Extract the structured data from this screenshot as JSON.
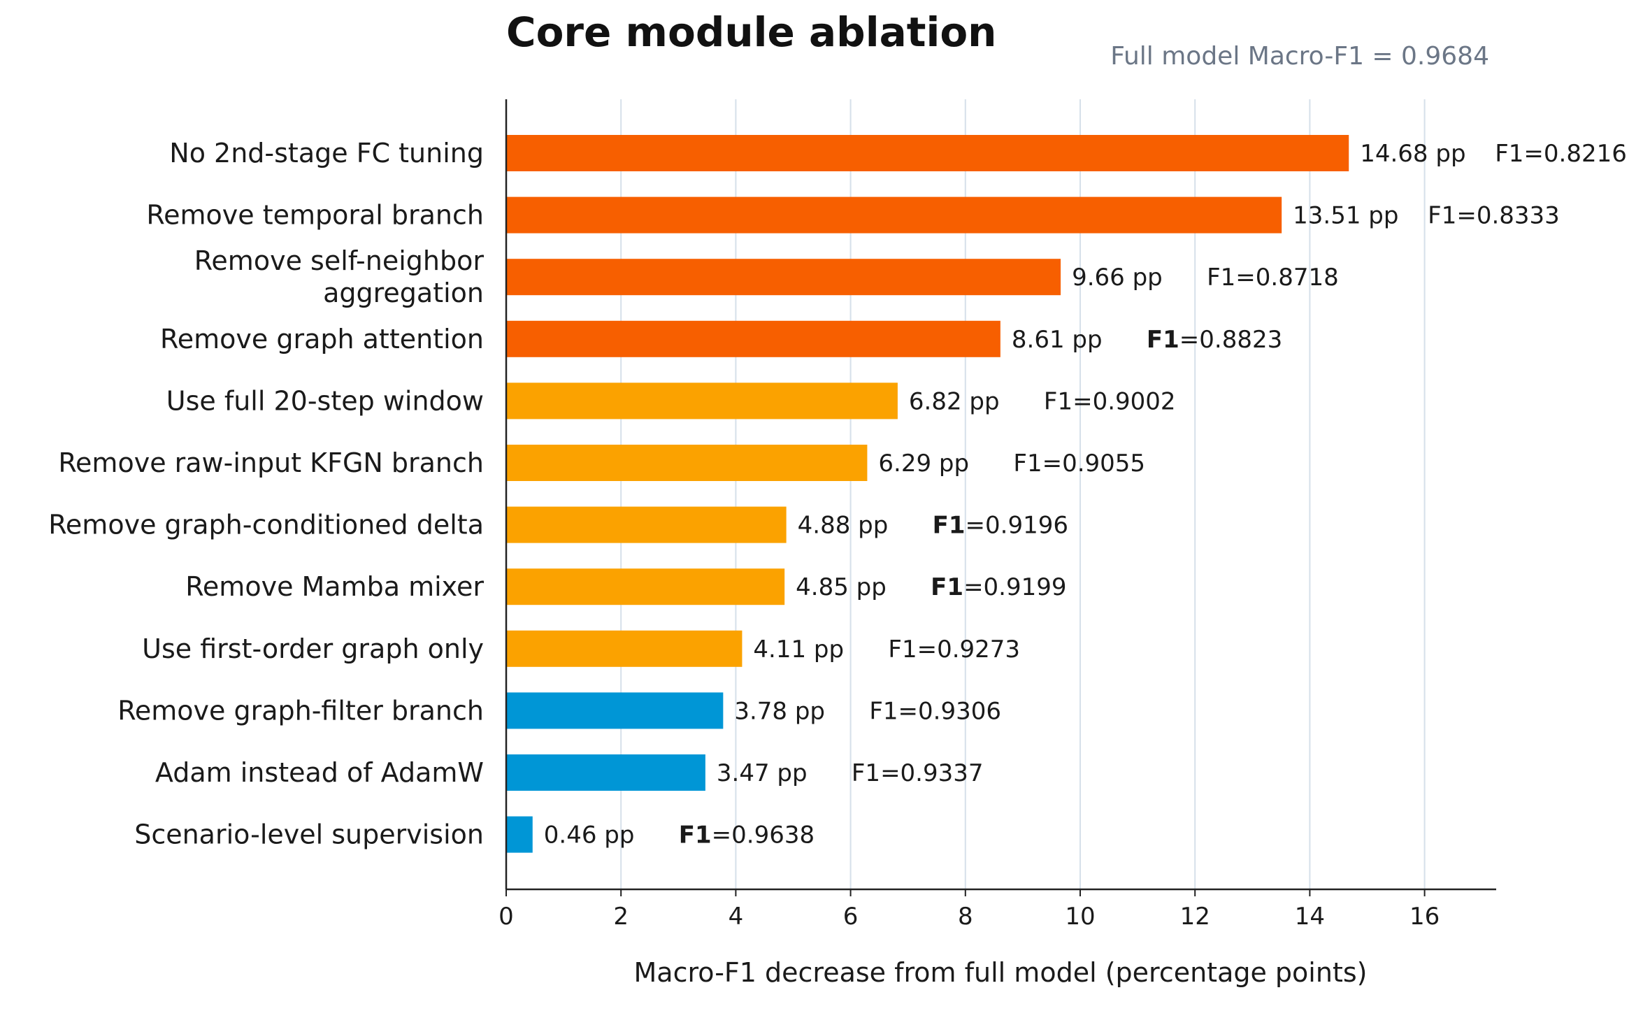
{
  "chart_data": {
    "type": "bar",
    "orientation": "horizontal",
    "title": "Core module ablation",
    "subtitle": "Full model Macro-F1 = 0.9684",
    "xlabel": "Macro-F1 decrease from full model (percentage points)",
    "ylabel": "",
    "xlim": [
      0,
      17.2
    ],
    "xticks": [
      0,
      2,
      4,
      6,
      8,
      10,
      12,
      14,
      16
    ],
    "grid": "vertical",
    "legend": "none",
    "value_suffix": " pp",
    "f1_prefix": "F1=",
    "colors": {
      "high": "#f75f00",
      "medium": "#fba200",
      "low": "#0096d6",
      "grid": "#d6e0ea",
      "axis": "#222222"
    },
    "categories": [
      [
        "No 2nd-stage FC tuning"
      ],
      [
        "Remove temporal branch"
      ],
      [
        "Remove self-neighbor",
        "aggregation"
      ],
      [
        "Remove graph attention"
      ],
      [
        "Use full 20-step window"
      ],
      [
        "Remove raw-input KFGN branch"
      ],
      [
        "Remove graph-conditioned delta"
      ],
      [
        "Remove Mamba mixer"
      ],
      [
        "Use first-order graph only"
      ],
      [
        "Remove graph-filter branch"
      ],
      [
        "Adam instead of AdamW"
      ],
      [
        "Scenario-level supervision"
      ]
    ],
    "values": [
      14.68,
      13.51,
      9.66,
      8.61,
      6.82,
      6.29,
      4.88,
      4.85,
      4.11,
      3.78,
      3.47,
      0.46
    ],
    "f1": [
      "0.8216",
      "0.8333",
      "0.8718",
      "0.8823",
      "0.9002",
      "0.9055",
      "0.9196",
      "0.9199",
      "0.9273",
      "0.9306",
      "0.9337",
      "0.9638"
    ],
    "tiers": [
      "high",
      "high",
      "high",
      "high",
      "medium",
      "medium",
      "medium",
      "medium",
      "medium",
      "low",
      "low",
      "low"
    ],
    "f1_bold": [
      false,
      false,
      false,
      true,
      false,
      false,
      true,
      true,
      false,
      false,
      false,
      true
    ]
  }
}
